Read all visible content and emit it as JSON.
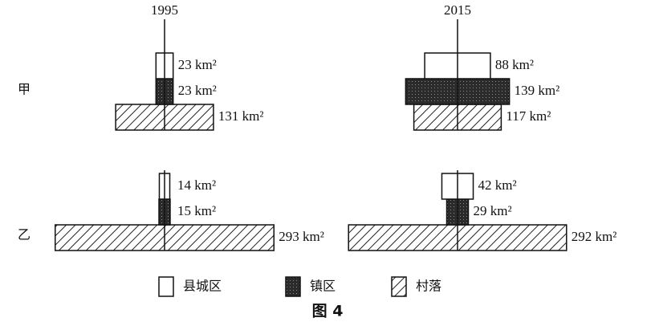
{
  "chart_data": {
    "type": "bar",
    "title": "图 4",
    "categories": [
      "1995",
      "2015"
    ],
    "groups": [
      "甲",
      "乙"
    ],
    "series": [
      {
        "name": "县城区",
        "color": "#ffffff",
        "pattern": "none",
        "values": [
          [
            23,
            88
          ],
          [
            14,
            42
          ]
        ],
        "value_labels": [
          [
            "23 km²",
            "88 km²"
          ],
          [
            "14 km²",
            "42 km²"
          ]
        ]
      },
      {
        "name": "镇区",
        "color": "#2b2b2b",
        "pattern": "dots",
        "values": [
          [
            23,
            139
          ],
          [
            15,
            29
          ]
        ],
        "value_labels": [
          [
            "23 km²",
            "139 km²"
          ],
          [
            "15 km²",
            "29 km²"
          ]
        ]
      },
      {
        "name": "村落",
        "color": "#ffffff",
        "pattern": "hatch",
        "values": [
          [
            131,
            117
          ],
          [
            293,
            292
          ]
        ],
        "value_labels": [
          [
            "131 km²",
            "117 km²"
          ],
          [
            "293 km²",
            "292 km²"
          ]
        ]
      }
    ]
  }
}
